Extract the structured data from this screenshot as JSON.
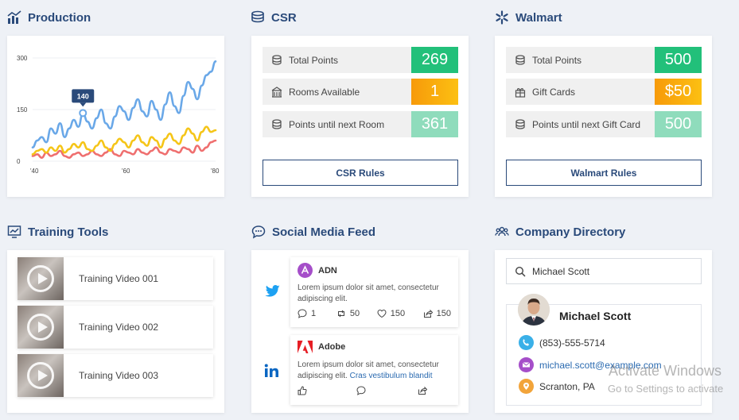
{
  "production": {
    "title": "Production",
    "tooltip": "140"
  },
  "chart_data": {
    "type": "line",
    "x": [
      0,
      2,
      4,
      6,
      8,
      10,
      12,
      14,
      16,
      18,
      20,
      22,
      24,
      26,
      28,
      30,
      32,
      34,
      36,
      38,
      40,
      42,
      44,
      46,
      48,
      50,
      52,
      54,
      56,
      58,
      60,
      62,
      64,
      66,
      68,
      70,
      72,
      74,
      76,
      78,
      80
    ],
    "xticks": [
      "'40",
      "'60",
      "'80"
    ],
    "yticks": [
      "0",
      "150",
      "300"
    ],
    "ylim": [
      0,
      300
    ],
    "series": [
      {
        "color": "#6aa8e8",
        "values": [
          40,
          60,
          70,
          55,
          95,
          80,
          110,
          70,
          95,
          120,
          100,
          140,
          115,
          95,
          125,
          150,
          110,
          95,
          130,
          160,
          145,
          120,
          155,
          180,
          145,
          130,
          175,
          150,
          120,
          165,
          200,
          160,
          140,
          190,
          230,
          210,
          180,
          220,
          250,
          260,
          290
        ]
      },
      {
        "color": "#f5c518",
        "values": [
          20,
          30,
          35,
          25,
          40,
          30,
          45,
          25,
          35,
          50,
          40,
          55,
          35,
          30,
          45,
          60,
          40,
          30,
          50,
          65,
          55,
          40,
          60,
          75,
          55,
          45,
          70,
          60,
          40,
          65,
          80,
          60,
          50,
          75,
          95,
          80,
          60,
          85,
          100,
          85,
          90
        ]
      },
      {
        "color": "#ef6f6f",
        "values": [
          15,
          20,
          10,
          25,
          15,
          20,
          30,
          15,
          10,
          20,
          25,
          15,
          20,
          30,
          20,
          15,
          25,
          35,
          20,
          15,
          30,
          25,
          20,
          35,
          25,
          20,
          30,
          40,
          25,
          20,
          35,
          30,
          25,
          40,
          35,
          25,
          45,
          30,
          40,
          55,
          60
        ]
      }
    ]
  },
  "csr": {
    "title": "CSR",
    "rows": [
      {
        "label": "Total Points",
        "value": "269",
        "color": "#22c07a"
      },
      {
        "label": "Rooms Available",
        "value": "1",
        "color": "#f7a20a"
      },
      {
        "label": "Points until next Room",
        "value": "361",
        "color": "#8fdcbc"
      }
    ],
    "button": "CSR Rules"
  },
  "walmart": {
    "title": "Walmart",
    "rows": [
      {
        "label": "Total Points",
        "value": "500",
        "color": "#22c07a"
      },
      {
        "label": "Gift Cards",
        "value": "$50",
        "color": "#f7a20a"
      },
      {
        "label": "Points until next Gift Card",
        "value": "500",
        "color": "#8fdcbc"
      }
    ],
    "button": "Walmart Rules"
  },
  "training": {
    "title": "Training Tools",
    "videos": [
      "Training Video 001",
      "Training Video 002",
      "Training Video 003"
    ]
  },
  "social": {
    "title": "Social Media Feed",
    "posts": [
      {
        "author": "ADN",
        "text": "Lorem ipsum dolor sit amet, consectetur adipiscing elit.",
        "link": "",
        "comments": "1",
        "retweets": "50",
        "likes": "150",
        "shares": "150"
      },
      {
        "author": "Adobe",
        "text": "Lorem ipsum dolor sit amet, consectetur adipiscing elit.",
        "link": "Cras vestibulum blandit"
      }
    ]
  },
  "directory": {
    "title": "Company Directory",
    "search_value": "Michael Scott",
    "contact": {
      "name": "Michael Scott",
      "phone": "(853)-555-5714",
      "email": "michael.scott@example.com",
      "location": "Scranton, PA"
    }
  },
  "watermark": {
    "line1": "Activate Windows",
    "line2": "Go to Settings to activate"
  }
}
